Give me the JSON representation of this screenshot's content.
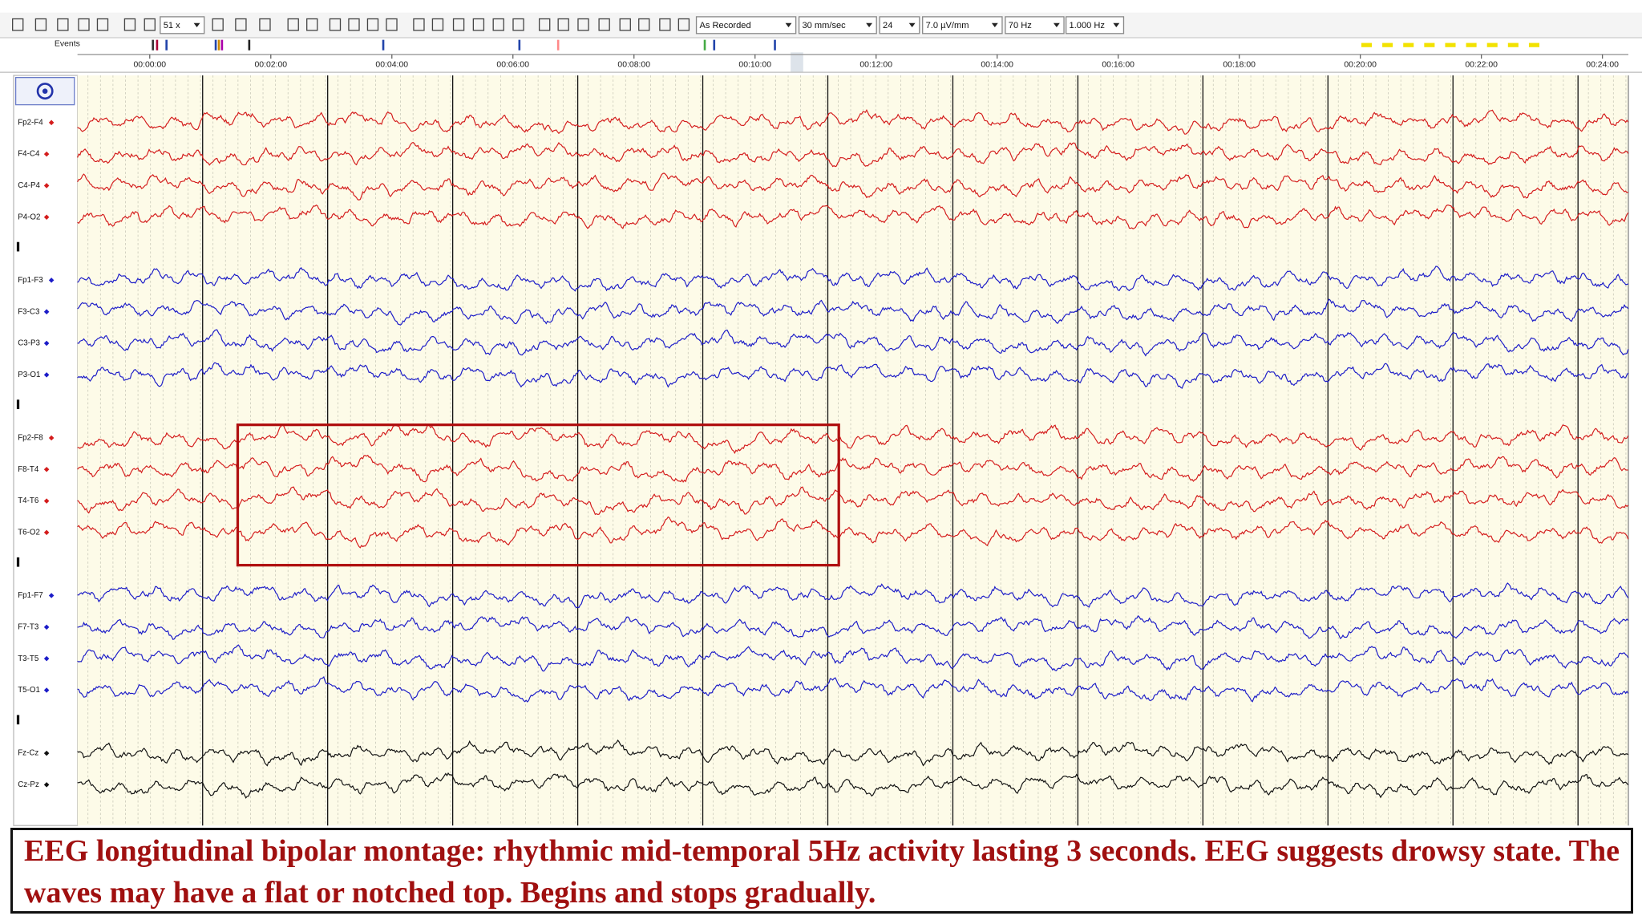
{
  "toolbar": {
    "zoom": "51 x",
    "montage": "As Recorded",
    "speed": "30 mm/sec",
    "channels": "24",
    "sensitivity": "7.0 µV/mm",
    "high_filter": "70 Hz",
    "low_filter": "1.000 Hz"
  },
  "events_label": "Events",
  "timeline": [
    "00:00:00",
    "00:02:00",
    "00:04:00",
    "00:06:00",
    "00:08:00",
    "00:10:00",
    "00:12:00",
    "00:14:00",
    "00:16:00",
    "00:18:00",
    "00:20:00",
    "00:22:00",
    "00:24:00"
  ],
  "channel_groups": [
    {
      "color": "#d41c1c",
      "channels": [
        "Fp2-F4",
        "F4-C4",
        "C4-P4",
        "P4-O2"
      ]
    },
    {
      "color": "#1c1cc8",
      "channels": [
        "Fp1-F3",
        "F3-C3",
        "C3-P3",
        "P3-O1"
      ]
    },
    {
      "color": "#d41c1c",
      "channels": [
        "Fp2-F8",
        "F8-T4",
        "T4-T6",
        "T6-O2"
      ]
    },
    {
      "color": "#1c1cc8",
      "channels": [
        "Fp1-F7",
        "F7-T3",
        "T3-T5",
        "T5-O1"
      ]
    },
    {
      "color": "#111111",
      "channels": [
        "Fz-Cz",
        "Cz-Pz"
      ]
    }
  ],
  "caption": "EEG longitudinal bipolar montage: rhythmic mid-temporal 5Hz activity lasting 3 seconds. EEG suggests drowsy state. The waves may have a flat or notched top. Begins and stops gradually."
}
